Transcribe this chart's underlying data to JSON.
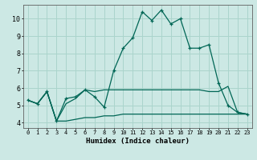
{
  "xlabel": "Humidex (Indice chaleur)",
  "bg_color": "#cce8e4",
  "grid_color": "#aad4cc",
  "line_color": "#006655",
  "x_ticks": [
    0,
    1,
    2,
    3,
    4,
    5,
    6,
    7,
    8,
    9,
    10,
    11,
    12,
    13,
    14,
    15,
    16,
    17,
    18,
    19,
    20,
    21,
    22,
    23
  ],
  "ylim": [
    3.7,
    10.8
  ],
  "xlim": [
    -0.5,
    23.5
  ],
  "series1": [
    5.3,
    5.1,
    5.8,
    4.1,
    5.4,
    5.5,
    5.9,
    5.5,
    4.9,
    7.0,
    8.3,
    8.9,
    10.4,
    9.9,
    10.5,
    9.7,
    10.0,
    8.3,
    8.3,
    8.5,
    6.3,
    5.0,
    4.6,
    4.5
  ],
  "series2": [
    5.3,
    5.1,
    5.8,
    4.1,
    5.1,
    5.4,
    5.9,
    5.8,
    5.9,
    5.9,
    5.9,
    5.9,
    5.9,
    5.9,
    5.9,
    5.9,
    5.9,
    5.9,
    5.9,
    5.8,
    5.8,
    6.1,
    4.6,
    4.5
  ],
  "series3": [
    5.3,
    5.1,
    5.8,
    4.1,
    4.1,
    4.2,
    4.3,
    4.3,
    4.4,
    4.4,
    4.5,
    4.5,
    4.5,
    4.5,
    4.5,
    4.5,
    4.5,
    4.5,
    4.5,
    4.5,
    4.5,
    4.5,
    4.5,
    4.5
  ],
  "yticks": [
    4,
    5,
    6,
    7,
    8,
    9,
    10
  ]
}
